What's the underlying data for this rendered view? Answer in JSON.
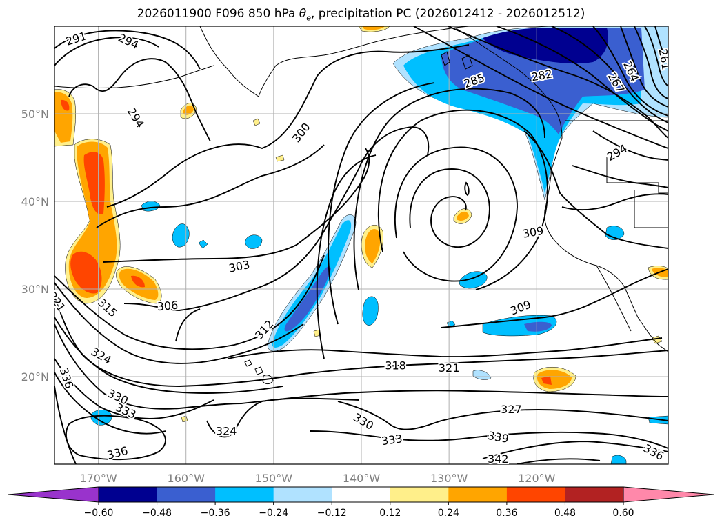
{
  "title": {
    "prefix": "2026011900 F096 850 hPa ",
    "theta": "θ",
    "theta_sub": "e",
    "suffix": ", precipitation PC (2026012412 - 2026012512)"
  },
  "map": {
    "lon_labels": [
      "170°W",
      "160°W",
      "150°W",
      "140°W",
      "130°W",
      "120°W"
    ],
    "lat_labels": [
      "50°N",
      "40°N",
      "30°N",
      "20°N"
    ],
    "lon_values": [
      -170,
      -160,
      -150,
      -140,
      -130,
      -120
    ],
    "lat_values": [
      50,
      40,
      30,
      20
    ],
    "lon_range": [
      -175,
      -105
    ],
    "lat_range": [
      10,
      60
    ]
  },
  "contour_labels": [
    {
      "text": "291",
      "lon": -172.5,
      "lat": 58.5,
      "rot": -18
    },
    {
      "text": "294",
      "lon": -166.6,
      "lat": 58.2,
      "rot": 25
    },
    {
      "text": "294",
      "lon": -165.8,
      "lat": 49.5,
      "rot": 58
    },
    {
      "text": "300",
      "lon": -146.8,
      "lat": 47.8,
      "rot": -52
    },
    {
      "text": "303",
      "lon": -153.9,
      "lat": 32.5,
      "rot": -12
    },
    {
      "text": "306",
      "lon": -162.1,
      "lat": 28.0,
      "rot": -5
    },
    {
      "text": "312",
      "lon": -151.0,
      "lat": 25.3,
      "rot": -48
    },
    {
      "text": "315",
      "lon": -169.0,
      "lat": 27.8,
      "rot": 42
    },
    {
      "text": "318",
      "lon": -136.1,
      "lat": 21.2,
      "rot": 0
    },
    {
      "text": "321",
      "lon": -130.0,
      "lat": 20.9,
      "rot": 0
    },
    {
      "text": "321",
      "lon": -174.8,
      "lat": 28.5,
      "rot": 55
    },
    {
      "text": "324",
      "lon": -169.7,
      "lat": 22.3,
      "rot": 30
    },
    {
      "text": "324",
      "lon": -155.4,
      "lat": 13.7,
      "rot": 0
    },
    {
      "text": "327",
      "lon": -122.9,
      "lat": 16.2,
      "rot": 0
    },
    {
      "text": "309",
      "lon": -121.8,
      "lat": 27.8,
      "rot": -22
    },
    {
      "text": "309",
      "lon": -120.4,
      "lat": 36.4,
      "rot": -10
    },
    {
      "text": "330",
      "lon": -167.8,
      "lat": 17.6,
      "rot": 25
    },
    {
      "text": "330",
      "lon": -139.8,
      "lat": 14.8,
      "rot": 30
    },
    {
      "text": "333",
      "lon": -166.9,
      "lat": 16.0,
      "rot": 25
    },
    {
      "text": "333",
      "lon": -136.5,
      "lat": 12.7,
      "rot": -8
    },
    {
      "text": "336",
      "lon": -173.7,
      "lat": 19.8,
      "rot": 72
    },
    {
      "text": "336",
      "lon": -167.8,
      "lat": 11.2,
      "rot": -15
    },
    {
      "text": "336",
      "lon": -106.7,
      "lat": 11.3,
      "rot": 28
    },
    {
      "text": "339",
      "lon": -124.4,
      "lat": 13.0,
      "rot": 10
    },
    {
      "text": "342",
      "lon": -124.4,
      "lat": 10.5,
      "rot": 0
    },
    {
      "text": "285",
      "lon": -127.1,
      "lat": 53.7,
      "rot": -20
    },
    {
      "text": "282",
      "lon": -119.4,
      "lat": 54.3,
      "rot": -10
    },
    {
      "text": "264",
      "lon": -109.3,
      "lat": 54.8,
      "rot": 65
    },
    {
      "text": "261",
      "lon": -105.5,
      "lat": 56.2,
      "rot": 80
    },
    {
      "text": "267",
      "lon": -111.0,
      "lat": 53.5,
      "rot": 60
    },
    {
      "text": "294",
      "lon": -110.8,
      "lat": 45.5,
      "rot": -30
    }
  ],
  "colorbar": {
    "colors": [
      "#9933cc",
      "#000090",
      "#3a5fd0",
      "#00bfff",
      "#b0e2ff",
      "#ffffff",
      "#ffef8a",
      "#ffa500",
      "#ff4500",
      "#b22222",
      "#ff88aa"
    ],
    "ticks": [
      "−0.60",
      "−0.48",
      "−0.36",
      "−0.24",
      "−0.12",
      "0.12",
      "0.24",
      "0.36",
      "0.48",
      "0.60"
    ],
    "levels": [
      -0.6,
      -0.48,
      -0.36,
      -0.24,
      -0.12,
      0.12,
      0.24,
      0.36,
      0.48,
      0.6
    ]
  }
}
